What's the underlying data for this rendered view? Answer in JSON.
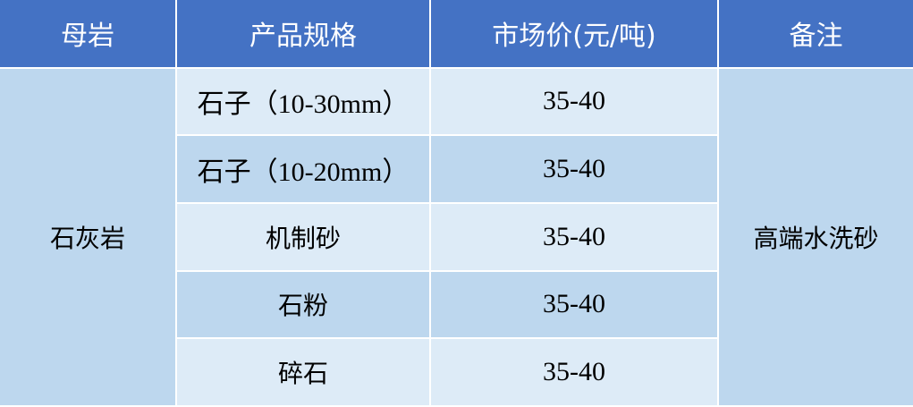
{
  "headers": [
    "母岩",
    "产品规格",
    "市场价(元/吨)",
    "备注"
  ],
  "rock": "石灰岩",
  "note": "高端水洗砂",
  "rows": [
    {
      "spec": "石子（10-30mm）",
      "price": "35-40"
    },
    {
      "spec": "石子（10-20mm）",
      "price": "35-40"
    },
    {
      "spec": "机制砂",
      "price": "35-40"
    },
    {
      "spec": "石粉",
      "price": "35-40"
    },
    {
      "spec": "碎石",
      "price": "35-40"
    }
  ],
  "colors": {
    "header": "#4472C4",
    "row_light": "#DDEBF7",
    "row_dark": "#BDD7EE"
  }
}
